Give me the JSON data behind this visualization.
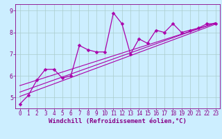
{
  "xlabel": "Windchill (Refroidissement éolien,°C)",
  "background_color": "#cceeff",
  "line_color": "#aa00aa",
  "grid_color": "#aacccc",
  "xlim": [
    -0.5,
    23.5
  ],
  "ylim": [
    4.5,
    9.3
  ],
  "xticks": [
    0,
    1,
    2,
    3,
    4,
    5,
    6,
    7,
    8,
    9,
    10,
    11,
    12,
    13,
    14,
    15,
    16,
    17,
    18,
    19,
    20,
    21,
    22,
    23
  ],
  "yticks": [
    5,
    6,
    7,
    8,
    9
  ],
  "hours": [
    0,
    1,
    2,
    3,
    4,
    5,
    6,
    7,
    8,
    9,
    10,
    11,
    12,
    13,
    14,
    15,
    16,
    17,
    18,
    19,
    20,
    21,
    22,
    23
  ],
  "values": [
    4.7,
    5.1,
    5.8,
    6.3,
    6.3,
    5.9,
    6.0,
    7.4,
    7.2,
    7.1,
    7.1,
    8.9,
    8.4,
    7.0,
    7.7,
    7.5,
    8.1,
    8.0,
    8.4,
    8.0,
    8.1,
    8.2,
    8.4,
    8.4
  ],
  "reg1": [
    5.05,
    8.38
  ],
  "reg2": [
    5.25,
    8.45
  ],
  "reg3": [
    5.55,
    8.42
  ],
  "markersize": 2.5,
  "linewidth": 0.9,
  "regwidth": 0.8,
  "tick_fontsize": 5.5,
  "xlabel_fontsize": 6.5,
  "axis_color": "#880088"
}
